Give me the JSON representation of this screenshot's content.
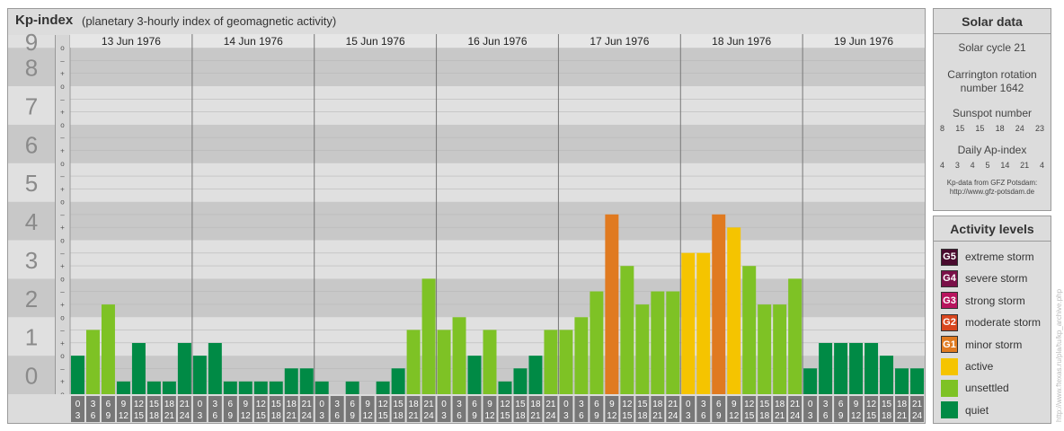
{
  "header": {
    "title": "Kp-index",
    "subtitle": "(planetary 3-hourly index of geomagnetic activity)"
  },
  "solar": {
    "title": "Solar data",
    "cycle": "Solar cycle 21",
    "carrington_line1": "Carrington rotation",
    "carrington_line2": "number 1642",
    "sunspot_title": "Sunspot number",
    "sunspot_values": [
      "8",
      "15",
      "15",
      "18",
      "24",
      "23"
    ],
    "ap_title": "Daily Ap-index",
    "ap_values": [
      "4",
      "3",
      "4",
      "5",
      "14",
      "21",
      "4"
    ],
    "source_line1": "Kp-data from GFZ Potsdam:",
    "source_line2": "http://www.gfz-potsdam.de"
  },
  "activity": {
    "title": "Activity levels",
    "levels": [
      {
        "badge": "G5",
        "label": "extreme storm",
        "color": "#4a0a2e"
      },
      {
        "badge": "G4",
        "label": "severe storm",
        "color": "#7a1048"
      },
      {
        "badge": "G3",
        "label": "strong storm",
        "color": "#b8145e"
      },
      {
        "badge": "G2",
        "label": "moderate storm",
        "color": "#d8461e"
      },
      {
        "badge": "G1",
        "label": "minor storm",
        "color": "#e07a20"
      },
      {
        "badge": "",
        "label": "active",
        "color": "#f5c400"
      },
      {
        "badge": "",
        "label": "unsettled",
        "color": "#7ec225"
      },
      {
        "badge": "",
        "label": "quiet",
        "color": "#008a45"
      }
    ]
  },
  "watermark": "http://www.ftexas.ru/pla/tu/kp_archive.php",
  "chart_data": {
    "type": "bar",
    "title": "Kp-index",
    "subtitle": "(planetary 3-hourly index of geomagnetic activity)",
    "days": [
      "13 Jun 1976",
      "14 Jun 1976",
      "15 Jun 1976",
      "16 Jun 1976",
      "17 Jun 1976",
      "18 Jun 1976",
      "19 Jun 1976"
    ],
    "interval_top": [
      "0",
      "3",
      "6",
      "9",
      "12",
      "15",
      "18",
      "21"
    ],
    "interval_bottom": [
      "3",
      "6",
      "9",
      "12",
      "15",
      "18",
      "21",
      "24"
    ],
    "y_ticks": [
      "0",
      "1",
      "2",
      "3",
      "4",
      "5",
      "6",
      "7",
      "8",
      "9"
    ],
    "subtick_labels": [
      "–",
      "o",
      "+"
    ],
    "ylim": [
      0,
      9.33
    ],
    "values": [
      1.0,
      1.67,
      2.33,
      0.33,
      1.33,
      0.33,
      0.33,
      1.33,
      1.0,
      1.33,
      0.33,
      0.33,
      0.33,
      0.33,
      0.67,
      0.67,
      0.33,
      0.0,
      0.33,
      0.0,
      0.33,
      0.67,
      1.67,
      3.0,
      1.67,
      2.0,
      1.0,
      1.67,
      0.33,
      0.67,
      1.0,
      1.67,
      1.67,
      2.0,
      2.67,
      4.67,
      3.33,
      2.33,
      2.67,
      2.67,
      3.67,
      3.67,
      4.67,
      4.33,
      3.33,
      2.33,
      2.33,
      3.0,
      0.67,
      1.33,
      1.33,
      1.33,
      1.33,
      1.0,
      0.67,
      0.67
    ],
    "colors": {
      "quiet": "#008a45",
      "unsettled": "#7ec225",
      "active": "#f5c400",
      "minor_storm": "#e07a20"
    },
    "grid": true
  }
}
